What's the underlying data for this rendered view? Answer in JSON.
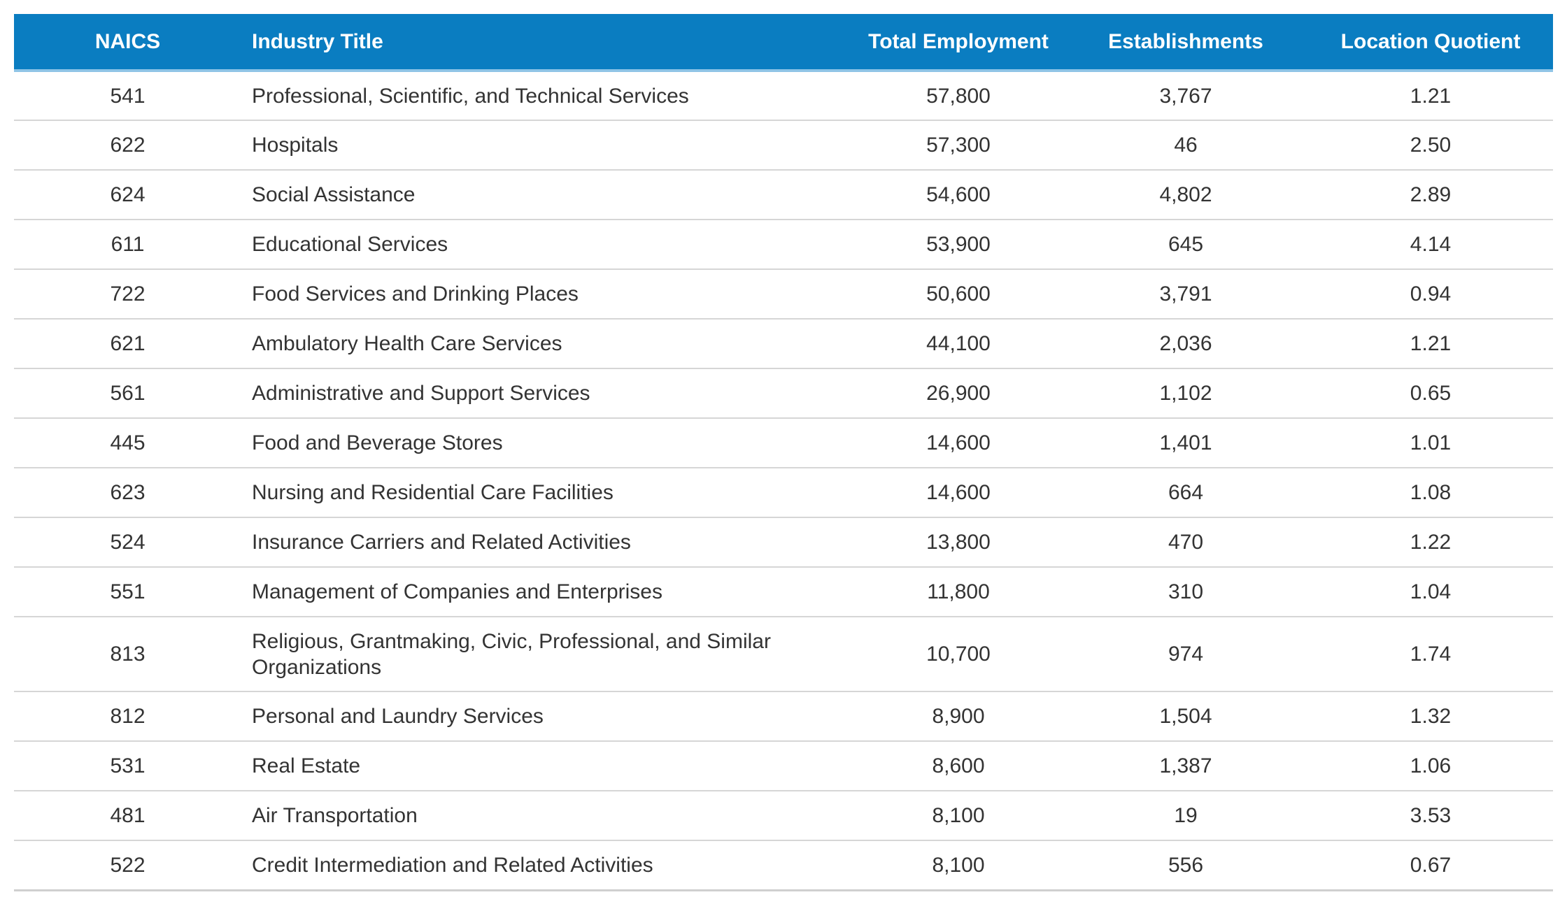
{
  "table": {
    "headers": {
      "naics": "NAICS",
      "industry_title": "Industry Title",
      "total_employment": "Total Employment",
      "establishments": "Establishments",
      "location_quotient": "Location Quotient"
    },
    "colors": {
      "header_background": "#0a7dc1",
      "header_text": "#ffffff",
      "row_divider": "#d6d6d6"
    },
    "rows": [
      {
        "naics": "541",
        "title": "Professional, Scientific, and Technical Services",
        "employment": "57,800",
        "establishments": "3,767",
        "lq": "1.21"
      },
      {
        "naics": "622",
        "title": "Hospitals",
        "employment": "57,300",
        "establishments": "46",
        "lq": "2.50"
      },
      {
        "naics": "624",
        "title": "Social Assistance",
        "employment": "54,600",
        "establishments": "4,802",
        "lq": "2.89"
      },
      {
        "naics": "611",
        "title": "Educational Services",
        "employment": "53,900",
        "establishments": "645",
        "lq": "4.14"
      },
      {
        "naics": "722",
        "title": "Food Services and Drinking Places",
        "employment": "50,600",
        "establishments": "3,791",
        "lq": "0.94"
      },
      {
        "naics": "621",
        "title": "Ambulatory Health Care Services",
        "employment": "44,100",
        "establishments": "2,036",
        "lq": "1.21"
      },
      {
        "naics": "561",
        "title": "Administrative and Support Services",
        "employment": "26,900",
        "establishments": "1,102",
        "lq": "0.65"
      },
      {
        "naics": "445",
        "title": "Food and Beverage Stores",
        "employment": "14,600",
        "establishments": "1,401",
        "lq": "1.01"
      },
      {
        "naics": "623",
        "title": "Nursing and Residential Care Facilities",
        "employment": "14,600",
        "establishments": "664",
        "lq": "1.08"
      },
      {
        "naics": "524",
        "title": "Insurance Carriers and Related Activities",
        "employment": "13,800",
        "establishments": "470",
        "lq": "1.22"
      },
      {
        "naics": "551",
        "title": "Management of Companies and Enterprises",
        "employment": "11,800",
        "establishments": "310",
        "lq": "1.04"
      },
      {
        "naics": "813",
        "title": "Religious, Grantmaking, Civic, Professional, and Similar Organizations",
        "employment": "10,700",
        "establishments": "974",
        "lq": "1.74"
      },
      {
        "naics": "812",
        "title": "Personal and Laundry Services",
        "employment": "8,900",
        "establishments": "1,504",
        "lq": "1.32"
      },
      {
        "naics": "531",
        "title": "Real Estate",
        "employment": "8,600",
        "establishments": "1,387",
        "lq": "1.06"
      },
      {
        "naics": "481",
        "title": "Air Transportation",
        "employment": "8,100",
        "establishments": "19",
        "lq": "3.53"
      },
      {
        "naics": "522",
        "title": "Credit Intermediation and Related Activities",
        "employment": "8,100",
        "establishments": "556",
        "lq": "0.67"
      }
    ]
  }
}
